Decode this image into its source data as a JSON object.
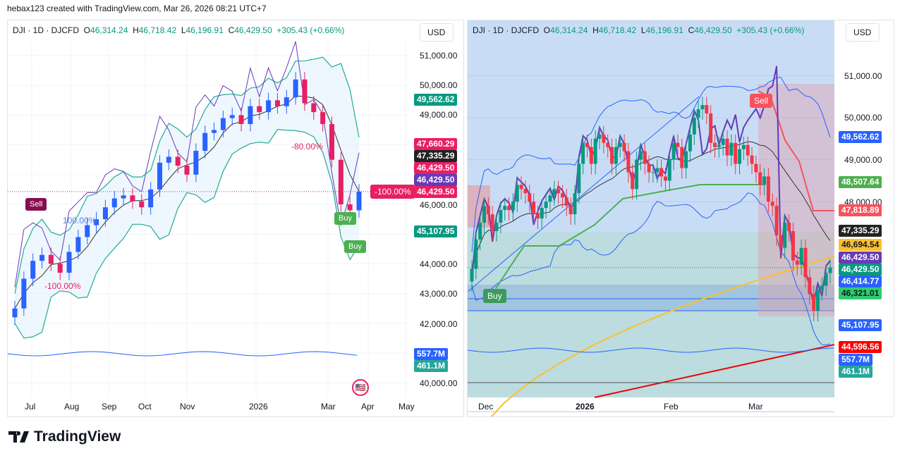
{
  "credit": "hebax123 created with TradingView.com, Mar 26, 2026 08:21 UTC+7",
  "legend": {
    "symbol": "DJI · 1D · DJCFD",
    "o_label": "O",
    "open": "46,314.24",
    "h_label": "H",
    "high": "46,718.42",
    "l_label": "L",
    "low": "46,196.91",
    "c_label": "C",
    "close": "46,429.50",
    "change": "+305.43 (+0.66%)"
  },
  "currency": "USD",
  "logo_text": "TradingView",
  "colors": {
    "up": "#089981",
    "down": "#f23645",
    "left_up": "#2962ff",
    "left_down": "#e91e63",
    "bb": "#22ab94",
    "ma": "#333333",
    "rsi": "#673ab7"
  },
  "left": {
    "axis_labels": [
      "51,000.00",
      "50,000.00",
      "49,000.00",
      "46,000.00",
      "44,000.00",
      "43,000.00",
      "42,000.00",
      "40,000.00"
    ],
    "badges": [
      {
        "text": "49,562.62",
        "color": "#089981"
      },
      {
        "text": "47,660.29",
        "color": "#e91e63"
      },
      {
        "text": "47,335.29",
        "color": "#222222"
      },
      {
        "text": "46,429.50",
        "color": "#e91e63"
      },
      {
        "text": "46,429.50",
        "color": "#673ab7"
      },
      {
        "text": "46,429.50",
        "color": "#e91e63"
      },
      {
        "text": "45,107.95",
        "color": "#089981"
      },
      {
        "text": "557.7M",
        "color": "#2962ff"
      },
      {
        "text": "461.1M",
        "color": "#26a69a"
      }
    ],
    "time_labels": [
      "Jul",
      "Aug",
      "Sep",
      "Oct",
      "Nov",
      "2026",
      "Mar",
      "Apr",
      "May"
    ],
    "signals": {
      "sell": "Sell",
      "buy1": "Buy",
      "buy2": "Buy",
      "flag": "-100.00%",
      "pct_a": "-80.00%",
      "pct_b": "100.00%",
      "pct_c": "-100.00%"
    }
  },
  "right": {
    "axis_labels": [
      "51,000.00",
      "50,000.00",
      "49,000.00",
      "48,000.00"
    ],
    "badges": [
      {
        "text": "49,562.62",
        "color": "#2962ff"
      },
      {
        "text": "48,507.64",
        "color": "#4caf50"
      },
      {
        "text": "47,818.89",
        "color": "#f7525f"
      },
      {
        "text": "47,335.29",
        "color": "#222222"
      },
      {
        "text": "46,694.54",
        "color": "#fbc02d"
      },
      {
        "text": "46,429.50",
        "color": "#673ab7"
      },
      {
        "text": "46,429.50",
        "color": "#089981"
      },
      {
        "text": "46,414.77",
        "color": "#2962ff"
      },
      {
        "text": "46,321.01",
        "color": "#2ecc71"
      },
      {
        "text": "45,107.95",
        "color": "#2962ff"
      },
      {
        "text": "44,596.56",
        "color": "#ff0000"
      },
      {
        "text": "557.7M",
        "color": "#2962ff"
      },
      {
        "text": "461.1M",
        "color": "#26a69a"
      }
    ],
    "time_labels": [
      "Dec",
      "2026",
      "Feb",
      "Mar"
    ],
    "signals": {
      "sell": "Sell",
      "buy": "Buy"
    }
  },
  "chart_data": [
    {
      "type": "candlestick",
      "title": "DJI · 1D · DJCFD",
      "resolution": "weekly approximation",
      "ylim": [
        40000,
        51500
      ],
      "x_range": [
        "2025-06",
        "2026-05"
      ],
      "closes": [
        42500,
        43500,
        44100,
        44300,
        44000,
        43700,
        44400,
        44900,
        45300,
        45500,
        45900,
        46200,
        46300,
        46100,
        45900,
        46500,
        47400,
        47600,
        47300,
        47000,
        47800,
        48400,
        48500,
        48900,
        49000,
        48700,
        49300,
        49100,
        49500,
        49300,
        49600,
        50200,
        49400,
        49100,
        48700,
        47500,
        46000,
        45800,
        46430
      ]
    },
    {
      "type": "candlestick",
      "title": "DJI · 1D · DJCFD",
      "ylim": [
        40000,
        51500
      ],
      "x_range": [
        "2025-11-26",
        "2026-03-25"
      ],
      "closes": [
        46400,
        47100,
        47500,
        47900,
        47700,
        47300,
        47500,
        47800,
        47900,
        47800,
        48000,
        48400,
        48300,
        48200,
        48000,
        47700,
        47600,
        47850,
        48000,
        48150,
        48300,
        48200,
        48100,
        47900,
        47700,
        48200,
        48900,
        49400,
        49300,
        48900,
        49500,
        49600,
        49400,
        49300,
        48900,
        49300,
        49400,
        49200,
        48700,
        48300,
        49000,
        49200,
        48900,
        48700,
        48700,
        48800,
        48600,
        48500,
        49000,
        49400,
        49300,
        48800,
        49200,
        49600,
        50000,
        50200,
        50300,
        50100,
        49400,
        49300,
        49350,
        49500,
        49100,
        49400,
        48900,
        49250,
        49350,
        49100,
        48900,
        48700,
        48400,
        48600,
        48000,
        47900,
        47200,
        46900,
        47500,
        47300,
        46600,
        46500,
        46900,
        46200,
        45800,
        45400,
        45900,
        46000,
        46300,
        46430
      ],
      "ma200_endpoints": [
        41600,
        46694.54
      ],
      "trend_line_end": 44596.56
    }
  ]
}
